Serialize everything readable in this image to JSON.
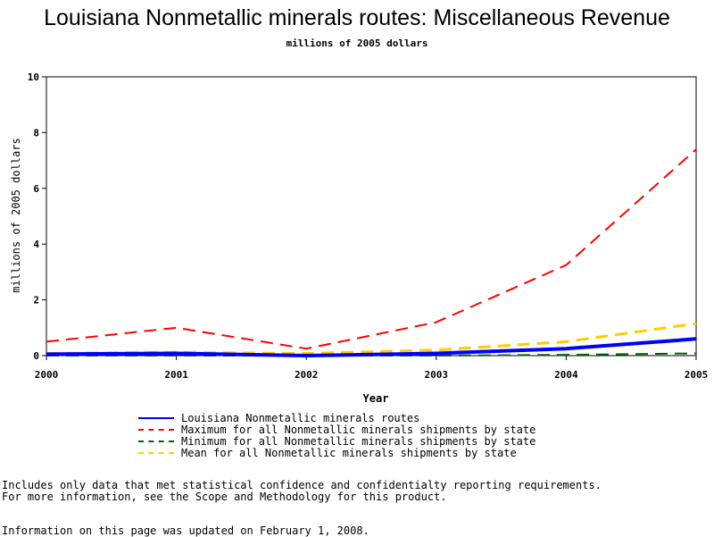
{
  "chart_data": {
    "type": "line",
    "title": "Louisiana Nonmetallic minerals routes: Miscellaneous Revenue",
    "subtitle": "millions of 2005 dollars",
    "xlabel": "Year",
    "ylabel": "millions of 2005 dollars",
    "x": [
      2000,
      2001,
      2002,
      2003,
      2004,
      2005
    ],
    "xlim": [
      2000,
      2005
    ],
    "ylim": [
      0,
      10
    ],
    "yticks": [
      0,
      2,
      4,
      6,
      8,
      10
    ],
    "grid": false,
    "legend_placement": "bottom",
    "series": [
      {
        "name": "Louisiana Nonmetallic minerals routes",
        "values": [
          0.05,
          0.08,
          0.0,
          0.08,
          0.25,
          0.6
        ],
        "color": "#0000ff",
        "style": "solid"
      },
      {
        "name": "Maximum for all Nonmetallic minerals shipments by state",
        "values": [
          0.5,
          1.0,
          0.25,
          1.2,
          3.25,
          7.4
        ],
        "color": "#ff0000",
        "style": "dashed"
      },
      {
        "name": "Minimum for all Nonmetallic minerals shipments by state",
        "values": [
          0.0,
          0.0,
          0.0,
          0.0,
          0.03,
          0.08
        ],
        "color": "#006400",
        "style": "dashed"
      },
      {
        "name": "Mean for all Nonmetallic minerals shipments by state",
        "values": [
          0.08,
          0.12,
          0.08,
          0.2,
          0.5,
          1.15
        ],
        "color": "#ffcc00",
        "style": "dashed"
      }
    ]
  },
  "footnotes": {
    "line1": "Includes only data that met statistical confidence and confidentialty reporting requirements.",
    "line2": "For more information, see the Scope and Methodology for this product.",
    "line3": "Information on this page was updated on February 1, 2008."
  }
}
